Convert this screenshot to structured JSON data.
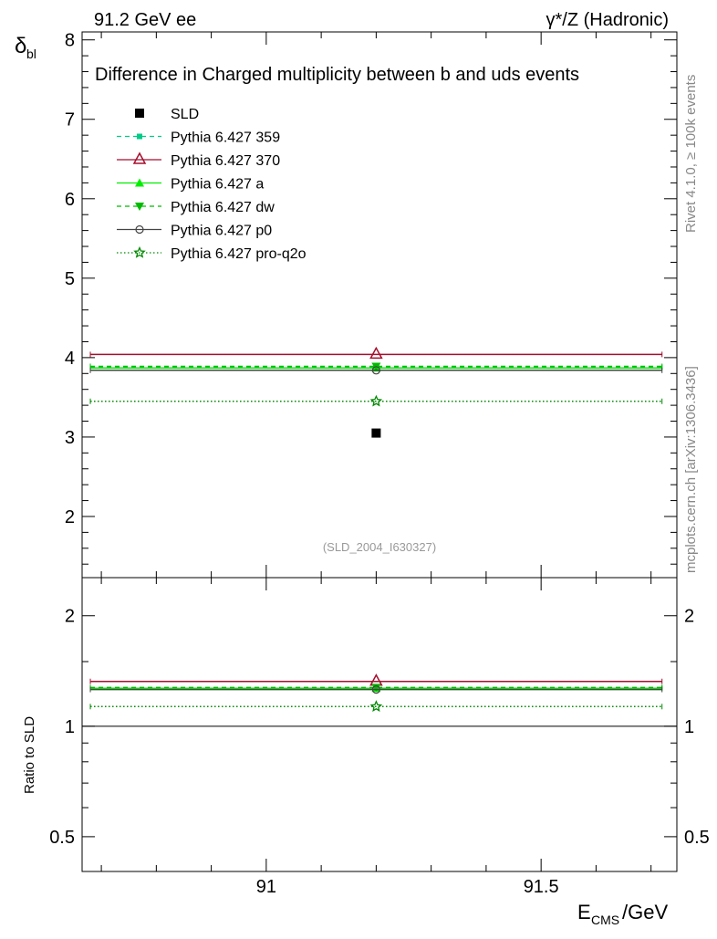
{
  "header": {
    "left": "91.2 GeV ee",
    "right": "γ*/Z (Hadronic)"
  },
  "side_labels": {
    "rivet": "Rivet 4.1.0, ≥ 100k events",
    "mcplots": "mcplots.cern.ch [arXiv:1306.3436]"
  },
  "chart_data": {
    "type": "line",
    "title": "Difference in Charged multiplicity between b and uds events",
    "ylabel": "δ_bl",
    "xlabel": "E_CMS/GeV",
    "ratio_ylabel": "Ratio to SLD",
    "watermark": "(SLD_2004_I630327)",
    "xlim": [
      90.665,
      91.747
    ],
    "ylim": [
      1.23,
      8.1
    ],
    "ratio_ylim": [
      0.402,
      2.54
    ],
    "ratio_scale": "log",
    "xticks": [
      {
        "v": 91,
        "label": "91"
      },
      {
        "v": 91.5,
        "label": "91.5"
      }
    ],
    "yticks": [
      {
        "v": 2,
        "label": "2"
      },
      {
        "v": 3,
        "label": "3"
      },
      {
        "v": 4,
        "label": "4"
      },
      {
        "v": 5,
        "label": "5"
      },
      {
        "v": 6,
        "label": "6"
      },
      {
        "v": 7,
        "label": "7"
      },
      {
        "v": 8,
        "label": "8"
      }
    ],
    "ratio_yticks": [
      {
        "v": 0.5,
        "label": "0.5"
      },
      {
        "v": 1,
        "label": "1"
      },
      {
        "v": 2,
        "label": "2"
      }
    ],
    "legend_position": "top-left",
    "x_point": 91.2,
    "x_bin": [
      90.68,
      91.72
    ],
    "data": {
      "name": "SLD",
      "y": 3.05
    },
    "series": [
      {
        "name": "Pythia 6.427 359",
        "y": 3.88,
        "color": "#00cc88",
        "dash": "5,4",
        "marker": "square"
      },
      {
        "name": "Pythia 6.427 370",
        "y": 4.04,
        "color": "#a50f2d",
        "dash": "",
        "marker": "triangle-open"
      },
      {
        "name": "Pythia 6.427 a",
        "y": 3.87,
        "color": "#00ee00",
        "dash": "",
        "marker": "triangle"
      },
      {
        "name": "Pythia 6.427 dw",
        "y": 3.89,
        "color": "#00bb00",
        "dash": "5,4",
        "marker": "triangle-down"
      },
      {
        "name": "Pythia 6.427 p0",
        "y": 3.84,
        "color": "#444444",
        "dash": "",
        "marker": "circle-open"
      },
      {
        "name": "Pythia 6.427 pro-q2o",
        "y": 3.45,
        "color": "#008800",
        "dash": "1.5,2.5",
        "marker": "star"
      }
    ]
  }
}
